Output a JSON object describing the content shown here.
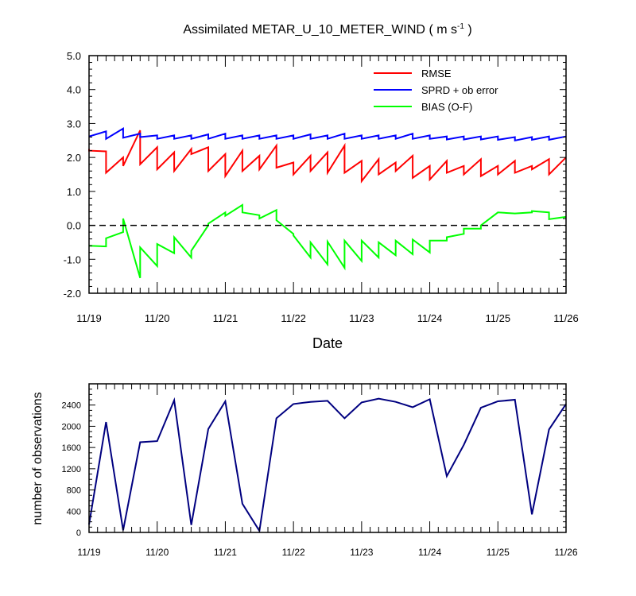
{
  "chart_data": [
    {
      "type": "line",
      "title": "Assimilated METAR_U_10_METER_WIND",
      "title_units_base": "( m s",
      "title_units_exp": "-1",
      "title_units_close": " )",
      "xlabel": "Date",
      "ylabel": "",
      "x_range_days": [
        0,
        7
      ],
      "x_ticks": [
        "11/19",
        "11/20",
        "11/21",
        "11/22",
        "11/23",
        "11/24",
        "11/25",
        "11/26"
      ],
      "ylim": [
        -2.0,
        5.0
      ],
      "y_ticks": [
        "-2.0",
        "-1.0",
        "0.0",
        "1.0",
        "2.0",
        "3.0",
        "4.0",
        "5.0"
      ],
      "zero_line": true,
      "legend_position": "top-right",
      "series": [
        {
          "name": "RMSE",
          "color": "#ff0000",
          "points": [
            [
              0,
              2.25
            ],
            [
              0,
              2.2
            ],
            [
              0.25,
              2.18
            ],
            [
              0.25,
              1.55
            ],
            [
              0.5,
              2.0
            ],
            [
              0.5,
              1.75
            ],
            [
              0.75,
              2.8
            ],
            [
              0.75,
              1.8
            ],
            [
              1.0,
              2.3
            ],
            [
              1.0,
              1.65
            ],
            [
              1.25,
              2.15
            ],
            [
              1.25,
              1.6
            ],
            [
              1.5,
              2.25
            ],
            [
              1.5,
              2.1
            ],
            [
              1.75,
              2.3
            ],
            [
              1.75,
              1.6
            ],
            [
              2.0,
              2.1
            ],
            [
              2.0,
              1.45
            ],
            [
              2.25,
              2.2
            ],
            [
              2.25,
              1.6
            ],
            [
              2.5,
              2.05
            ],
            [
              2.5,
              1.65
            ],
            [
              2.75,
              2.35
            ],
            [
              2.75,
              1.7
            ],
            [
              3.0,
              1.85
            ],
            [
              3.0,
              1.5
            ],
            [
              3.25,
              2.05
            ],
            [
              3.25,
              1.6
            ],
            [
              3.5,
              2.15
            ],
            [
              3.5,
              1.55
            ],
            [
              3.75,
              2.35
            ],
            [
              3.75,
              1.55
            ],
            [
              4.0,
              1.9
            ],
            [
              4.0,
              1.3
            ],
            [
              4.25,
              1.95
            ],
            [
              4.25,
              1.5
            ],
            [
              4.5,
              1.85
            ],
            [
              4.5,
              1.6
            ],
            [
              4.75,
              2.05
            ],
            [
              4.75,
              1.4
            ],
            [
              5.0,
              1.75
            ],
            [
              5.0,
              1.35
            ],
            [
              5.25,
              1.9
            ],
            [
              5.25,
              1.55
            ],
            [
              5.5,
              1.75
            ],
            [
              5.5,
              1.5
            ],
            [
              5.75,
              1.95
            ],
            [
              5.75,
              1.45
            ],
            [
              6.0,
              1.75
            ],
            [
              6.0,
              1.5
            ],
            [
              6.25,
              1.9
            ],
            [
              6.25,
              1.55
            ],
            [
              6.5,
              1.75
            ],
            [
              6.5,
              1.65
            ],
            [
              6.75,
              1.95
            ],
            [
              6.75,
              1.5
            ],
            [
              7.0,
              2.0
            ]
          ]
        },
        {
          "name": "SPRD + ob error",
          "color": "#0000ff",
          "points": [
            [
              0,
              2.62
            ],
            [
              0.25,
              2.77
            ],
            [
              0.25,
              2.55
            ],
            [
              0.5,
              2.85
            ],
            [
              0.5,
              2.58
            ],
            [
              0.75,
              2.7
            ],
            [
              0.75,
              2.6
            ],
            [
              1.0,
              2.65
            ],
            [
              1.0,
              2.55
            ],
            [
              1.25,
              2.65
            ],
            [
              1.25,
              2.55
            ],
            [
              1.5,
              2.65
            ],
            [
              1.5,
              2.55
            ],
            [
              1.75,
              2.68
            ],
            [
              1.75,
              2.55
            ],
            [
              2.0,
              2.7
            ],
            [
              2.0,
              2.55
            ],
            [
              2.25,
              2.65
            ],
            [
              2.25,
              2.55
            ],
            [
              2.5,
              2.65
            ],
            [
              2.5,
              2.55
            ],
            [
              2.75,
              2.65
            ],
            [
              2.75,
              2.55
            ],
            [
              3.0,
              2.65
            ],
            [
              3.0,
              2.55
            ],
            [
              3.25,
              2.68
            ],
            [
              3.25,
              2.55
            ],
            [
              3.5,
              2.65
            ],
            [
              3.5,
              2.55
            ],
            [
              3.75,
              2.7
            ],
            [
              3.75,
              2.55
            ],
            [
              4.0,
              2.65
            ],
            [
              4.0,
              2.55
            ],
            [
              4.25,
              2.65
            ],
            [
              4.25,
              2.55
            ],
            [
              4.5,
              2.65
            ],
            [
              4.5,
              2.55
            ],
            [
              4.75,
              2.7
            ],
            [
              4.75,
              2.55
            ],
            [
              5.0,
              2.65
            ],
            [
              5.0,
              2.55
            ],
            [
              5.25,
              2.62
            ],
            [
              5.25,
              2.53
            ],
            [
              5.5,
              2.62
            ],
            [
              5.5,
              2.53
            ],
            [
              5.75,
              2.62
            ],
            [
              5.75,
              2.53
            ],
            [
              6.0,
              2.62
            ],
            [
              6.0,
              2.52
            ],
            [
              6.25,
              2.6
            ],
            [
              6.25,
              2.5
            ],
            [
              6.5,
              2.6
            ],
            [
              6.5,
              2.52
            ],
            [
              6.75,
              2.62
            ],
            [
              6.75,
              2.52
            ],
            [
              7.0,
              2.62
            ]
          ]
        },
        {
          "name": "BIAS (O-F)",
          "color": "#00ff00",
          "points": [
            [
              0,
              -0.6
            ],
            [
              0.25,
              -0.62
            ],
            [
              0.25,
              -0.38
            ],
            [
              0.5,
              -0.2
            ],
            [
              0.5,
              0.2
            ],
            [
              0.75,
              -1.55
            ],
            [
              0.75,
              -0.65
            ],
            [
              1.0,
              -1.2
            ],
            [
              1.0,
              -0.55
            ],
            [
              1.25,
              -0.82
            ],
            [
              1.25,
              -0.35
            ],
            [
              1.5,
              -0.95
            ],
            [
              1.5,
              -0.75
            ],
            [
              1.75,
              0.0
            ],
            [
              1.75,
              0.05
            ],
            [
              2.0,
              0.38
            ],
            [
              2.0,
              0.28
            ],
            [
              2.25,
              0.6
            ],
            [
              2.25,
              0.38
            ],
            [
              2.5,
              0.3
            ],
            [
              2.5,
              0.2
            ],
            [
              2.75,
              0.45
            ],
            [
              2.75,
              0.15
            ],
            [
              3.0,
              -0.25
            ],
            [
              3.0,
              -0.3
            ],
            [
              3.25,
              -0.95
            ],
            [
              3.25,
              -0.5
            ],
            [
              3.5,
              -1.15
            ],
            [
              3.5,
              -0.48
            ],
            [
              3.75,
              -1.25
            ],
            [
              3.75,
              -0.45
            ],
            [
              4.0,
              -1.05
            ],
            [
              4.0,
              -0.45
            ],
            [
              4.25,
              -0.95
            ],
            [
              4.25,
              -0.5
            ],
            [
              4.5,
              -0.88
            ],
            [
              4.5,
              -0.45
            ],
            [
              4.75,
              -0.85
            ],
            [
              4.75,
              -0.42
            ],
            [
              5.0,
              -0.8
            ],
            [
              5.0,
              -0.45
            ],
            [
              5.25,
              -0.45
            ],
            [
              5.25,
              -0.35
            ],
            [
              5.5,
              -0.25
            ],
            [
              5.5,
              -0.1
            ],
            [
              5.75,
              -0.1
            ],
            [
              5.75,
              0.0
            ],
            [
              6.0,
              0.38
            ],
            [
              6.25,
              0.35
            ],
            [
              6.5,
              0.38
            ],
            [
              6.5,
              0.42
            ],
            [
              6.75,
              0.38
            ],
            [
              6.75,
              0.18
            ],
            [
              7.0,
              0.25
            ]
          ]
        }
      ]
    },
    {
      "type": "line",
      "title": "",
      "xlabel": "",
      "ylabel": "number of observations",
      "x_range_days": [
        0,
        7
      ],
      "x_ticks": [
        "11/19",
        "11/20",
        "11/21",
        "11/22",
        "11/23",
        "11/24",
        "11/25",
        "11/26"
      ],
      "ylim": [
        0,
        2800
      ],
      "y_ticks": [
        "0",
        "400",
        "800",
        "1200",
        "1600",
        "2000",
        "2400"
      ],
      "series": [
        {
          "color": "#000080",
          "points": [
            [
              0,
              150
            ],
            [
              0.25,
              2080
            ],
            [
              0.5,
              40
            ],
            [
              0.75,
              1700
            ],
            [
              1.0,
              1720
            ],
            [
              1.25,
              2490
            ],
            [
              1.5,
              140
            ],
            [
              1.75,
              1950
            ],
            [
              2.0,
              2470
            ],
            [
              2.25,
              540
            ],
            [
              2.5,
              30
            ],
            [
              2.75,
              2150
            ],
            [
              3.0,
              2420
            ],
            [
              3.25,
              2460
            ],
            [
              3.5,
              2480
            ],
            [
              3.75,
              2150
            ],
            [
              4.0,
              2450
            ],
            [
              4.25,
              2520
            ],
            [
              4.5,
              2460
            ],
            [
              4.75,
              2360
            ],
            [
              5.0,
              2510
            ],
            [
              5.25,
              1060
            ],
            [
              5.5,
              1650
            ],
            [
              5.75,
              2350
            ],
            [
              6.0,
              2470
            ],
            [
              6.25,
              2500
            ],
            [
              6.5,
              340
            ],
            [
              6.75,
              1940
            ],
            [
              7.0,
              2420
            ]
          ]
        }
      ]
    }
  ]
}
